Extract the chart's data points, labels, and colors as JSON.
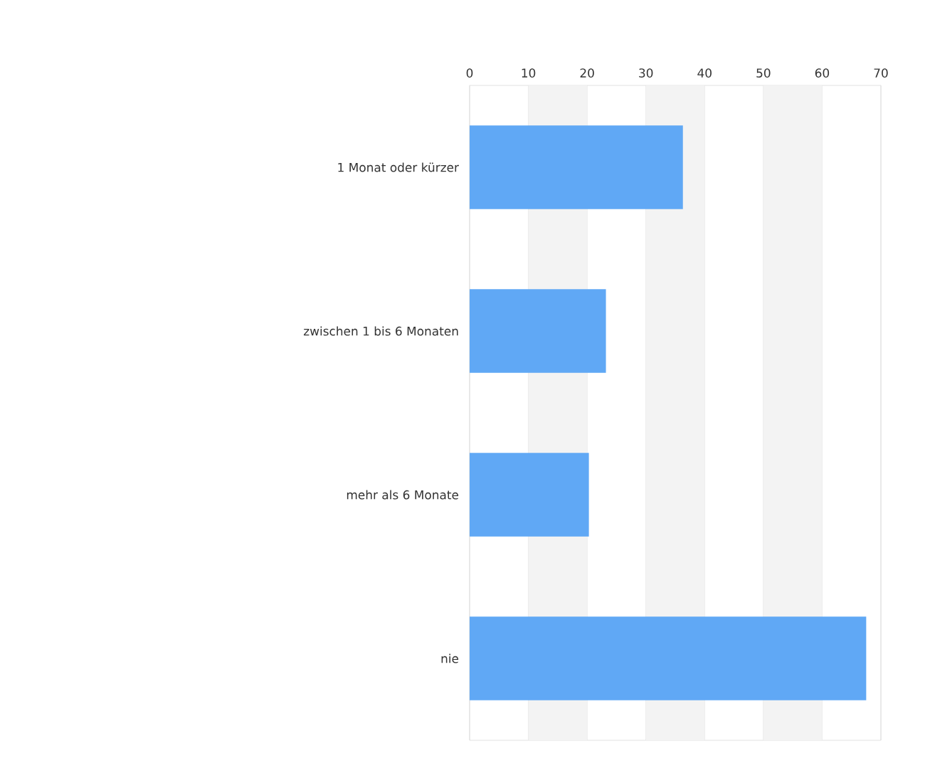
{
  "chart_data": {
    "type": "bar",
    "orientation": "horizontal",
    "categories": [
      "1 Monat oder kürzer",
      "zwischen 1 bis 6 Monaten",
      "mehr als 6 Monate",
      "nie"
    ],
    "values": [
      36.3,
      23.2,
      20.3,
      67.5
    ],
    "color": "#60a8f5",
    "xlim": [
      0,
      70
    ],
    "xticks": [
      0,
      10,
      20,
      30,
      40,
      50,
      60,
      70
    ],
    "grid": "x",
    "bands": [
      {
        "axis": "x",
        "from": 10,
        "to": 20,
        "color": "#f3f3f3"
      },
      {
        "axis": "x",
        "from": 30,
        "to": 40,
        "color": "#f3f3f3"
      },
      {
        "axis": "x",
        "from": 50,
        "to": 60,
        "color": "#f3f3f3"
      }
    ]
  }
}
